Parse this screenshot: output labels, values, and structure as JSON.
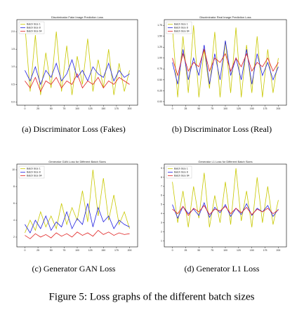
{
  "chart_data": [
    {
      "type": "line",
      "title": "Discriminator Fake Image Prediction Loss",
      "caption": "(a) Discriminator Loss (Fakes)",
      "x": [
        0,
        10,
        20,
        30,
        40,
        50,
        60,
        70,
        80,
        90,
        100,
        110,
        120,
        130,
        140,
        150,
        160,
        170,
        180,
        190,
        200
      ],
      "xlim": [
        -10,
        210
      ],
      "xticks": [
        0,
        25,
        50,
        75,
        100,
        125,
        150,
        175,
        200
      ],
      "ylim": [
        -0.05,
        2.3
      ],
      "yticks": [
        {
          "value": 0,
          "label": "0.0"
        },
        {
          "value": 0.5,
          "label": "0.5"
        },
        {
          "value": 1,
          "label": "1.0"
        },
        {
          "value": 1.5,
          "label": "1.5"
        },
        {
          "value": 2,
          "label": "2.0"
        }
      ],
      "legend": "upper left",
      "series": [
        {
          "name": "Batch Size 1",
          "color": "#c8c800",
          "values": [
            2.2,
            0.3,
            1.9,
            0.2,
            1.4,
            0.4,
            2.0,
            0.3,
            1.6,
            0.2,
            1.3,
            0.5,
            1.8,
            0.3,
            1.2,
            0.4,
            1.5,
            0.2,
            1.1,
            0.3,
            0.9
          ]
        },
        {
          "name": "Batch Size 8",
          "color": "#2020e0",
          "values": [
            0.9,
            0.6,
            1.0,
            0.5,
            0.9,
            0.7,
            1.1,
            0.6,
            0.8,
            1.2,
            0.7,
            0.9,
            0.6,
            1.0,
            0.8,
            0.7,
            1.1,
            0.6,
            0.9,
            0.7,
            0.8
          ]
        },
        {
          "name": "Batch Size 64",
          "color": "#e02020",
          "values": [
            0.6,
            0.4,
            0.7,
            0.3,
            0.6,
            0.5,
            0.7,
            0.4,
            0.6,
            0.5,
            0.8,
            0.4,
            0.6,
            0.5,
            0.7,
            0.4,
            0.6,
            0.5,
            0.7,
            0.6,
            0.5
          ]
        }
      ]
    },
    {
      "type": "line",
      "title": "Discriminator Real Image Prediction Loss",
      "caption": "(b) Discriminator Loss (Real)",
      "x": [
        0,
        10,
        20,
        30,
        40,
        50,
        60,
        70,
        80,
        90,
        100,
        110,
        120,
        130,
        140,
        150,
        160,
        170,
        180,
        190,
        200
      ],
      "xlim": [
        -10,
        210
      ],
      "xticks": [
        0,
        25,
        50,
        75,
        100,
        125,
        150,
        175,
        200
      ],
      "ylim": [
        -0.05,
        1.85
      ],
      "yticks": [
        {
          "value": 0,
          "label": "0.00"
        },
        0.25,
        {
          "value": 0.5,
          "label": "0.50"
        },
        0.75,
        {
          "value": 1,
          "label": "1.00"
        },
        1.25,
        {
          "value": 1.5,
          "label": "1.50"
        },
        1.75
      ],
      "legend": "upper left",
      "series": [
        {
          "name": "Batch Size 1",
          "color": "#c8c800",
          "values": [
            1.7,
            0.1,
            1.5,
            0.2,
            1.75,
            0.1,
            1.2,
            0.3,
            1.6,
            0.1,
            1.4,
            0.2,
            1.7,
            0.1,
            1.3,
            0.2,
            1.5,
            0.1,
            1.2,
            0.2,
            1.0
          ]
        },
        {
          "name": "Batch Size 8",
          "color": "#2020e0",
          "values": [
            0.9,
            0.4,
            1.2,
            0.5,
            1.0,
            0.6,
            1.3,
            0.4,
            1.1,
            0.5,
            1.4,
            0.6,
            1.0,
            0.5,
            1.2,
            0.4,
            1.1,
            0.6,
            0.9,
            0.5,
            0.8
          ]
        },
        {
          "name": "Batch Size 64",
          "color": "#e02020",
          "values": [
            1.0,
            0.6,
            1.1,
            0.7,
            0.9,
            0.8,
            1.2,
            0.7,
            1.0,
            0.9,
            1.1,
            0.7,
            1.0,
            0.8,
            1.1,
            0.7,
            0.9,
            0.8,
            1.0,
            0.7,
            0.9
          ]
        }
      ]
    },
    {
      "type": "line",
      "title": "Generator GAN Loss for Different Batch Sizes",
      "caption": "(c) Generator GAN Loss",
      "x": [
        0,
        10,
        20,
        30,
        40,
        50,
        60,
        70,
        80,
        90,
        100,
        110,
        120,
        130,
        140,
        150,
        160,
        170,
        180,
        190,
        200
      ],
      "xlim": [
        -10,
        210
      ],
      "xticks": [
        0,
        25,
        50,
        75,
        100,
        125,
        150,
        175,
        200
      ],
      "ylim": [
        1,
        10.5
      ],
      "yticks": [
        2,
        4,
        6,
        8,
        10
      ],
      "legend": "upper left",
      "series": [
        {
          "name": "Batch Size 1",
          "color": "#c8c800",
          "values": [
            2.5,
            4.0,
            2.8,
            5.0,
            3.2,
            4.5,
            3.0,
            6.0,
            3.5,
            5.5,
            4.0,
            7.5,
            3.8,
            10.0,
            4.5,
            9.0,
            4.0,
            7.0,
            3.5,
            5.0,
            3.0
          ]
        },
        {
          "name": "Batch Size 8",
          "color": "#2020e0",
          "values": [
            3.5,
            2.5,
            4.0,
            3.0,
            4.5,
            2.8,
            3.8,
            3.2,
            5.0,
            3.0,
            4.2,
            3.5,
            6.0,
            3.2,
            5.5,
            3.8,
            4.5,
            3.0,
            4.0,
            3.5,
            3.2
          ]
        },
        {
          "name": "Batch Size 64",
          "color": "#e02020",
          "values": [
            2.2,
            1.8,
            2.4,
            2.0,
            2.3,
            1.9,
            2.5,
            2.1,
            2.4,
            2.0,
            2.6,
            2.2,
            2.5,
            2.1,
            2.8,
            2.3,
            2.6,
            2.2,
            2.5,
            2.3,
            2.4
          ]
        }
      ]
    },
    {
      "type": "line",
      "title": "Generator L1 Loss for Different Batch Sizes",
      "caption": "(d) Generator L1 Loss",
      "x": [
        0,
        10,
        20,
        30,
        40,
        50,
        60,
        70,
        80,
        90,
        100,
        110,
        120,
        130,
        140,
        150,
        160,
        170,
        180,
        190,
        200
      ],
      "xlim": [
        -10,
        210
      ],
      "xticks": [
        0,
        25,
        50,
        75,
        100,
        125,
        150,
        175,
        200
      ],
      "ylim": [
        0.5,
        9.3
      ],
      "yticks": [
        1,
        2,
        3,
        4,
        5,
        6,
        7,
        8,
        9
      ],
      "legend": "upper left",
      "series": [
        {
          "name": "Batch Size 1",
          "color": "#c8c800",
          "values": [
            7.5,
            3.0,
            6.5,
            2.5,
            7.0,
            3.5,
            8.5,
            2.5,
            6.0,
            3.0,
            7.5,
            2.8,
            9.0,
            3.2,
            6.5,
            2.5,
            8.0,
            3.0,
            7.0,
            2.8,
            5.5
          ]
        },
        {
          "name": "Batch Size 8",
          "color": "#2020e0",
          "values": [
            5.0,
            3.5,
            4.8,
            4.0,
            4.5,
            3.8,
            5.2,
            3.6,
            4.7,
            4.1,
            5.0,
            3.7,
            4.6,
            3.9,
            5.1,
            3.8,
            4.6,
            4.2,
            4.9,
            3.7,
            4.5
          ]
        },
        {
          "name": "Batch Size 64",
          "color": "#e02020",
          "values": [
            4.5,
            4.0,
            4.8,
            3.8,
            4.6,
            4.2,
            4.9,
            3.9,
            4.5,
            4.3,
            4.8,
            4.0,
            4.6,
            4.1,
            4.7,
            3.9,
            4.5,
            4.2,
            4.6,
            4.0,
            4.4
          ]
        }
      ]
    }
  ],
  "figure_caption": "Figure 5: Loss graphs of the different batch sizes"
}
